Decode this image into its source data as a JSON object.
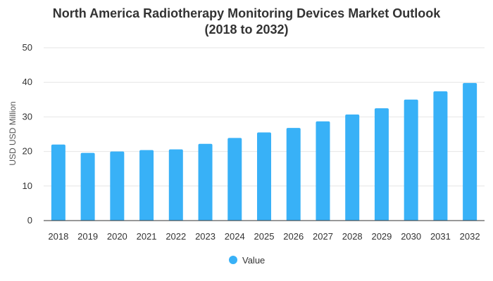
{
  "colors": {
    "bar": "#38B1F7",
    "grid": "#e6e6e6",
    "axis": "#333333"
  },
  "chart_data": {
    "type": "bar",
    "title_line1": "North America Radiotherapy Monitoring Devices Market Outlook",
    "title_line2": "(2018 to 2032)",
    "xlabel": "",
    "ylabel": "USD USD Million",
    "ylim": [
      0,
      50
    ],
    "yticks": [
      0,
      10,
      20,
      30,
      40,
      50
    ],
    "categories": [
      "2018",
      "2019",
      "2020",
      "2021",
      "2022",
      "2023",
      "2024",
      "2025",
      "2026",
      "2027",
      "2028",
      "2029",
      "2030",
      "2031",
      "2032"
    ],
    "series": [
      {
        "name": "Value",
        "values": [
          22.0,
          19.6,
          20.0,
          20.4,
          20.6,
          22.2,
          23.9,
          25.5,
          26.8,
          28.7,
          30.7,
          32.5,
          35.0,
          37.4,
          39.8
        ]
      }
    ],
    "legend_position": "bottom-center",
    "grid": true
  }
}
